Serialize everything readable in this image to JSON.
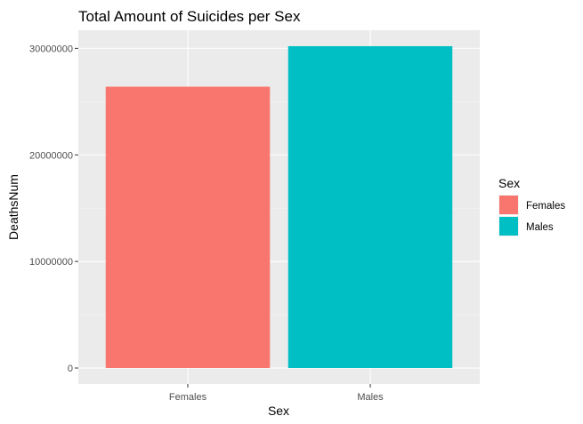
{
  "chart_data": {
    "type": "bar",
    "title": "Total Amount of Suicides per Sex",
    "xlabel": "Sex",
    "ylabel": "DeathsNum",
    "categories": [
      "Females",
      "Males"
    ],
    "values": [
      26400000,
      30200000
    ],
    "ylim": [
      -1500000,
      31700000
    ],
    "yticks": [
      0,
      10000000,
      20000000,
      30000000
    ],
    "ytick_labels": [
      "0",
      "10000000",
      "20000000",
      "30000000"
    ],
    "grid": true,
    "legend": {
      "title": "Sex",
      "position": "right",
      "entries": [
        "Females",
        "Males"
      ]
    },
    "colors": {
      "Females": "#F8766D",
      "Males": "#00BFC4",
      "panel": "#EBEBEB",
      "grid_major": "#FFFFFF",
      "grid_minor": "#F5F5F5"
    }
  }
}
